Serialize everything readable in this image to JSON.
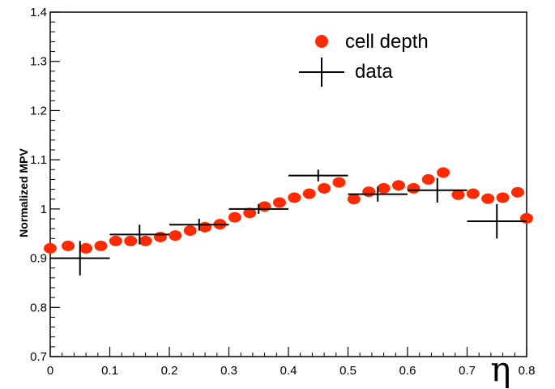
{
  "chart_data": {
    "type": "scatter",
    "title": "",
    "xlabel": "η",
    "ylabel": "Normalized MPV",
    "xlim": [
      0,
      0.8
    ],
    "ylim": [
      0.7,
      1.4
    ],
    "x_ticks": [
      "0",
      "0.1",
      "0.2",
      "0.3",
      "0.4",
      "0.5",
      "0.6",
      "0.7",
      "0.8"
    ],
    "y_ticks": [
      "0.7",
      "0.8",
      "0.9",
      "1",
      "1.1",
      "1.2",
      "1.3",
      "1.4"
    ],
    "grid": false,
    "legend_position": "top-right",
    "series": [
      {
        "name": "cell depth",
        "marker": "filled-circle",
        "color": "#ff2a00",
        "points": [
          [
            0.0,
            0.92
          ],
          [
            0.03,
            0.925
          ],
          [
            0.06,
            0.92
          ],
          [
            0.085,
            0.925
          ],
          [
            0.11,
            0.935
          ],
          [
            0.135,
            0.935
          ],
          [
            0.16,
            0.935
          ],
          [
            0.185,
            0.943
          ],
          [
            0.21,
            0.946
          ],
          [
            0.235,
            0.956
          ],
          [
            0.26,
            0.963
          ],
          [
            0.285,
            0.969
          ],
          [
            0.31,
            0.983
          ],
          [
            0.335,
            0.992
          ],
          [
            0.36,
            1.005
          ],
          [
            0.385,
            1.013
          ],
          [
            0.41,
            1.023
          ],
          [
            0.435,
            1.031
          ],
          [
            0.46,
            1.042
          ],
          [
            0.485,
            1.054
          ],
          [
            0.51,
            1.02
          ],
          [
            0.535,
            1.035
          ],
          [
            0.56,
            1.042
          ],
          [
            0.585,
            1.048
          ],
          [
            0.61,
            1.042
          ],
          [
            0.635,
            1.06
          ],
          [
            0.66,
            1.074
          ],
          [
            0.685,
            1.029
          ],
          [
            0.71,
            1.031
          ],
          [
            0.735,
            1.021
          ],
          [
            0.76,
            1.023
          ],
          [
            0.785,
            1.034
          ],
          [
            0.8,
            0.981
          ]
        ]
      },
      {
        "name": "data",
        "marker": "cross-errorbar",
        "color": "#000000",
        "points": [
          {
            "x": 0.05,
            "y": 0.9,
            "xerr": 0.05,
            "yerr": 0.035
          },
          {
            "x": 0.15,
            "y": 0.948,
            "xerr": 0.05,
            "yerr": 0.02
          },
          {
            "x": 0.25,
            "y": 0.968,
            "xerr": 0.05,
            "yerr": 0.012
          },
          {
            "x": 0.35,
            "y": 1.0,
            "xerr": 0.05,
            "yerr": 0.01
          },
          {
            "x": 0.45,
            "y": 1.068,
            "xerr": 0.05,
            "yerr": 0.012
          },
          {
            "x": 0.55,
            "y": 1.03,
            "xerr": 0.05,
            "yerr": 0.015
          },
          {
            "x": 0.65,
            "y": 1.038,
            "xerr": 0.05,
            "yerr": 0.025
          },
          {
            "x": 0.75,
            "y": 0.975,
            "xerr": 0.05,
            "yerr": 0.035
          }
        ]
      }
    ]
  }
}
